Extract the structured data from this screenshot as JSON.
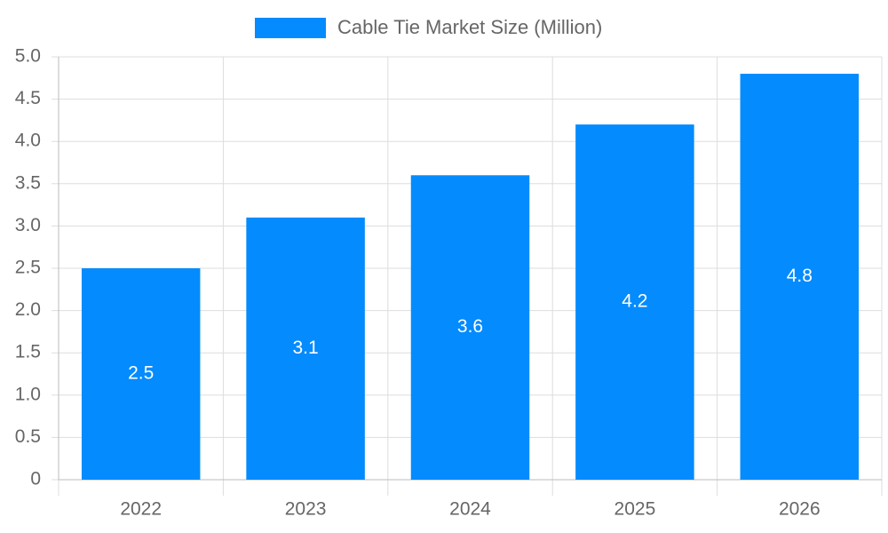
{
  "chart_data": {
    "type": "bar",
    "categories": [
      "2022",
      "2023",
      "2024",
      "2025",
      "2026"
    ],
    "series": [
      {
        "name": "Cable Tie Market Size (Million)",
        "color": "#048bfe",
        "values": [
          2.5,
          3.1,
          3.6,
          4.2,
          4.8
        ]
      }
    ],
    "ylim": [
      0,
      5
    ],
    "yticks": [
      0,
      0.5,
      {
        "value": 1,
        "label": "1.0"
      },
      1.5,
      {
        "value": 2,
        "label": "2.0"
      },
      2.5,
      {
        "value": 3,
        "label": "3.0"
      },
      3.5,
      {
        "value": 4,
        "label": "4.0"
      },
      4.5,
      {
        "value": 5,
        "label": "5.0"
      }
    ],
    "grid": true
  }
}
